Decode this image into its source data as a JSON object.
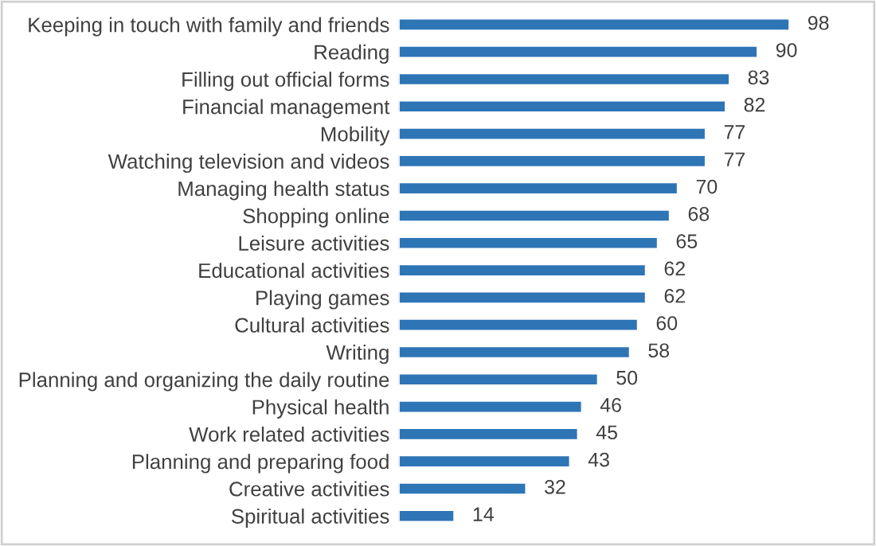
{
  "chart_data": {
    "type": "bar",
    "orientation": "horizontal",
    "data_labels": true,
    "grid": false,
    "legend": false,
    "color": "#2e75b6",
    "categories": [
      "Keeping in touch with family and friends",
      "Reading",
      "Filling out official forms",
      "Financial management",
      "Mobility",
      "Watching television and videos",
      "Managing health status",
      "Shopping online",
      "Leisure activities",
      "Educational activities",
      "Playing games",
      "Cultural activities",
      "Writing",
      "Planning and organizing the daily routine",
      "Physical health",
      "Work related activities",
      "Planning and preparing food",
      "Creative activities",
      "Spiritual activities"
    ],
    "values": [
      98,
      90,
      83,
      82,
      77,
      77,
      70,
      68,
      65,
      62,
      62,
      60,
      58,
      50,
      46,
      45,
      43,
      32,
      14
    ]
  }
}
